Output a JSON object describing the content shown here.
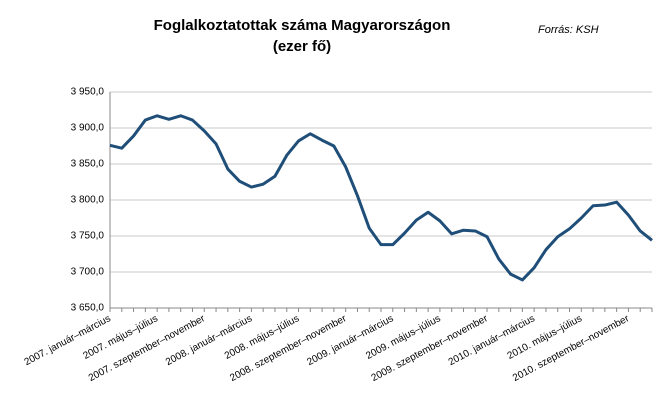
{
  "chart_data": {
    "type": "line",
    "title": "Foglalkoztatottak száma Magyarországon",
    "subtitle": "(ezer fő)",
    "source": "Forrás: KSH",
    "categories": [
      "2007. január–március",
      null,
      null,
      null,
      "2007. május–július",
      null,
      null,
      null,
      "2007. szeptember–november",
      null,
      null,
      null,
      "2008. január–március",
      null,
      null,
      null,
      "2008. május–július",
      null,
      null,
      null,
      "2008. szeptember–november",
      null,
      null,
      null,
      "2009. január–március",
      null,
      null,
      null,
      "2009. május–július",
      null,
      null,
      null,
      "2009. szeptember–november",
      null,
      null,
      null,
      "2010. január–március",
      null,
      null,
      null,
      "2010. május–július",
      null,
      null,
      null,
      "2010. szeptember–november",
      null,
      null
    ],
    "series": [
      {
        "name": "Foglalkoztatottak",
        "color": "#1f4e79",
        "values": [
          3876,
          3872,
          3889,
          3911,
          3917,
          3912,
          3917,
          3911,
          3896,
          3878,
          3843,
          3826,
          3818,
          3822,
          3833,
          3862,
          3882,
          3892,
          3883,
          3875,
          3846,
          3806,
          3761,
          3738,
          3738,
          3754,
          3772,
          3783,
          3771,
          3753,
          3758,
          3757,
          3749,
          3718,
          3697,
          3689,
          3706,
          3731,
          3749,
          3760,
          3775,
          3792,
          3793,
          3797,
          3779,
          3757,
          3744
        ]
      }
    ],
    "ylim": [
      3650,
      3950
    ],
    "yticks": [
      {
        "value": 3650,
        "label": "3 650,0"
      },
      {
        "value": 3700,
        "label": "3 700,0"
      },
      {
        "value": 3750,
        "label": "3 750,0"
      },
      {
        "value": 3800,
        "label": "3 800,0"
      },
      {
        "value": 3850,
        "label": "3 850,0"
      },
      {
        "value": 3900,
        "label": "3 900,0"
      },
      {
        "value": 3950,
        "label": "3 950,0"
      }
    ],
    "grid": true
  }
}
